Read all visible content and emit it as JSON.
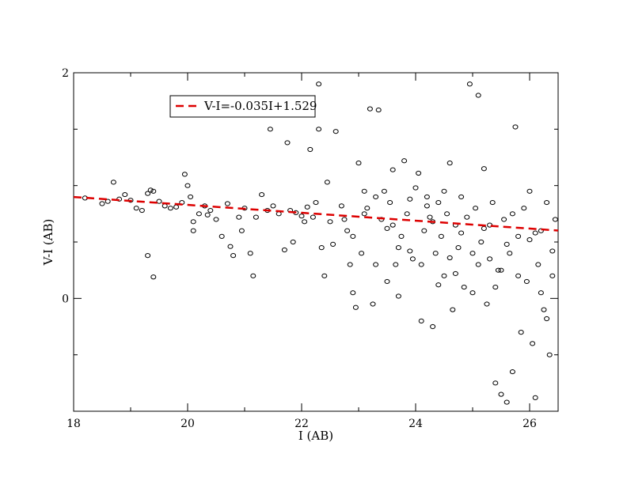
{
  "chart_data": {
    "type": "scatter",
    "title": "",
    "xlabel": "I (AB)",
    "ylabel": "V-I (AB)",
    "xlim": [
      18,
      26.5
    ],
    "ylim": [
      -1.0,
      2.0
    ],
    "x_ticks": [
      18,
      20,
      22,
      24,
      26
    ],
    "x_tick_labels": [
      "18",
      "20",
      "22",
      "24",
      "26"
    ],
    "y_ticks": [
      0,
      2
    ],
    "y_tick_labels": [
      "0",
      "2"
    ],
    "grid": false,
    "legend_position": "top-left",
    "fit_line": {
      "label": "V-I=-0.035I+1.529",
      "slope": -0.035,
      "intercept": 1.529,
      "color": "#dd0000",
      "style": "dashed"
    },
    "marker_style": "open-circle",
    "colors": {
      "points": "#000000",
      "fit": "#dd0000",
      "axes": "#000000"
    },
    "series": [
      {
        "points": [
          [
            18.2,
            0.89
          ],
          [
            18.5,
            0.84
          ],
          [
            18.6,
            0.86
          ],
          [
            18.7,
            1.03
          ],
          [
            18.8,
            0.88
          ],
          [
            18.9,
            0.92
          ],
          [
            19.0,
            0.87
          ],
          [
            19.1,
            0.8
          ],
          [
            19.2,
            0.78
          ],
          [
            19.3,
            0.93
          ],
          [
            19.35,
            0.96
          ],
          [
            19.4,
            0.95
          ],
          [
            19.4,
            0.19
          ],
          [
            19.3,
            0.38
          ],
          [
            19.5,
            0.86
          ],
          [
            19.6,
            0.82
          ],
          [
            19.7,
            0.8
          ],
          [
            19.8,
            0.81
          ],
          [
            19.9,
            0.85
          ],
          [
            19.95,
            1.1
          ],
          [
            20.0,
            1.0
          ],
          [
            20.05,
            0.9
          ],
          [
            20.1,
            0.68
          ],
          [
            20.1,
            0.6
          ],
          [
            20.2,
            0.75
          ],
          [
            20.3,
            0.82
          ],
          [
            20.35,
            0.74
          ],
          [
            20.4,
            0.78
          ],
          [
            20.5,
            0.7
          ],
          [
            20.6,
            0.55
          ],
          [
            20.7,
            0.84
          ],
          [
            20.75,
            0.46
          ],
          [
            20.8,
            0.38
          ],
          [
            20.9,
            0.72
          ],
          [
            20.95,
            0.6
          ],
          [
            21.0,
            0.8
          ],
          [
            21.1,
            0.4
          ],
          [
            21.15,
            0.2
          ],
          [
            21.2,
            0.72
          ],
          [
            21.3,
            0.92
          ],
          [
            21.4,
            0.78
          ],
          [
            21.45,
            1.5
          ],
          [
            21.5,
            0.82
          ],
          [
            21.6,
            0.75
          ],
          [
            21.7,
            0.43
          ],
          [
            21.75,
            1.38
          ],
          [
            21.8,
            0.78
          ],
          [
            21.85,
            0.5
          ],
          [
            21.9,
            0.76
          ],
          [
            22.0,
            0.73
          ],
          [
            22.05,
            0.68
          ],
          [
            22.1,
            0.81
          ],
          [
            22.15,
            1.32
          ],
          [
            22.2,
            0.72
          ],
          [
            22.25,
            0.85
          ],
          [
            22.3,
            1.5
          ],
          [
            22.3,
            1.9
          ],
          [
            22.35,
            0.45
          ],
          [
            22.4,
            0.2
          ],
          [
            22.45,
            1.03
          ],
          [
            22.5,
            0.68
          ],
          [
            22.55,
            0.48
          ],
          [
            22.6,
            1.48
          ],
          [
            22.7,
            0.82
          ],
          [
            22.75,
            0.7
          ],
          [
            22.8,
            0.6
          ],
          [
            22.85,
            0.3
          ],
          [
            22.9,
            0.05
          ],
          [
            22.95,
            -0.08
          ],
          [
            23.0,
            1.2
          ],
          [
            23.05,
            0.4
          ],
          [
            23.1,
            0.75
          ],
          [
            23.15,
            0.8
          ],
          [
            23.2,
            1.68
          ],
          [
            23.25,
            -0.05
          ],
          [
            23.3,
            0.3
          ],
          [
            23.35,
            1.67
          ],
          [
            23.4,
            0.7
          ],
          [
            23.45,
            0.95
          ],
          [
            23.5,
            0.62
          ],
          [
            23.55,
            0.85
          ],
          [
            23.6,
            1.14
          ],
          [
            23.65,
            0.3
          ],
          [
            23.7,
            0.02
          ],
          [
            23.75,
            0.55
          ],
          [
            23.8,
            1.22
          ],
          [
            23.85,
            0.75
          ],
          [
            23.9,
            0.88
          ],
          [
            23.95,
            0.35
          ],
          [
            24.0,
            0.98
          ],
          [
            24.05,
            1.11
          ],
          [
            24.1,
            -0.2
          ],
          [
            24.15,
            0.6
          ],
          [
            24.2,
            0.9
          ],
          [
            24.25,
            0.72
          ],
          [
            24.3,
            -0.25
          ],
          [
            24.35,
            0.4
          ],
          [
            24.4,
            0.85
          ],
          [
            24.45,
            0.55
          ],
          [
            24.5,
            0.2
          ],
          [
            24.55,
            0.75
          ],
          [
            24.6,
            1.2
          ],
          [
            24.65,
            -0.1
          ],
          [
            24.7,
            0.65
          ],
          [
            24.75,
            0.45
          ],
          [
            24.8,
            0.9
          ],
          [
            24.85,
            0.1
          ],
          [
            24.9,
            0.72
          ],
          [
            24.95,
            1.9
          ],
          [
            25.0,
            0.4
          ],
          [
            25.05,
            0.8
          ],
          [
            25.1,
            1.8
          ],
          [
            25.1,
            0.3
          ],
          [
            25.15,
            0.5
          ],
          [
            25.2,
            1.15
          ],
          [
            25.25,
            -0.05
          ],
          [
            25.3,
            0.65
          ],
          [
            25.35,
            0.85
          ],
          [
            25.4,
            -0.75
          ],
          [
            25.45,
            0.25
          ],
          [
            25.5,
            -0.85
          ],
          [
            25.55,
            0.7
          ],
          [
            25.6,
            -0.92
          ],
          [
            25.65,
            0.4
          ],
          [
            25.7,
            -0.65
          ],
          [
            25.75,
            1.52
          ],
          [
            25.8,
            0.55
          ],
          [
            25.85,
            -0.3
          ],
          [
            25.9,
            0.8
          ],
          [
            25.95,
            0.15
          ],
          [
            26.0,
            0.95
          ],
          [
            26.05,
            -0.4
          ],
          [
            26.1,
            -0.88
          ],
          [
            26.15,
            0.3
          ],
          [
            26.2,
            0.6
          ],
          [
            26.25,
            -0.1
          ],
          [
            26.3,
            0.85
          ],
          [
            26.35,
            -0.5
          ],
          [
            26.4,
            0.2
          ],
          [
            26.45,
            0.7
          ],
          [
            23.3,
            0.9
          ],
          [
            23.6,
            0.65
          ],
          [
            23.9,
            0.42
          ],
          [
            24.1,
            0.3
          ],
          [
            24.2,
            0.82
          ],
          [
            24.4,
            0.12
          ],
          [
            24.6,
            0.36
          ],
          [
            24.8,
            0.58
          ],
          [
            25.0,
            0.05
          ],
          [
            25.2,
            0.62
          ],
          [
            25.4,
            0.1
          ],
          [
            25.6,
            0.48
          ],
          [
            25.8,
            0.2
          ],
          [
            26.0,
            0.52
          ],
          [
            26.2,
            0.05
          ],
          [
            26.4,
            0.42
          ],
          [
            23.1,
            0.95
          ],
          [
            23.5,
            0.15
          ],
          [
            24.3,
            0.68
          ],
          [
            24.7,
            0.22
          ],
          [
            25.3,
            0.35
          ],
          [
            25.7,
            0.75
          ],
          [
            26.1,
            0.58
          ],
          [
            26.3,
            -0.18
          ],
          [
            22.9,
            0.55
          ],
          [
            23.7,
            0.45
          ],
          [
            24.5,
            0.95
          ],
          [
            25.5,
            0.25
          ]
        ]
      }
    ]
  }
}
